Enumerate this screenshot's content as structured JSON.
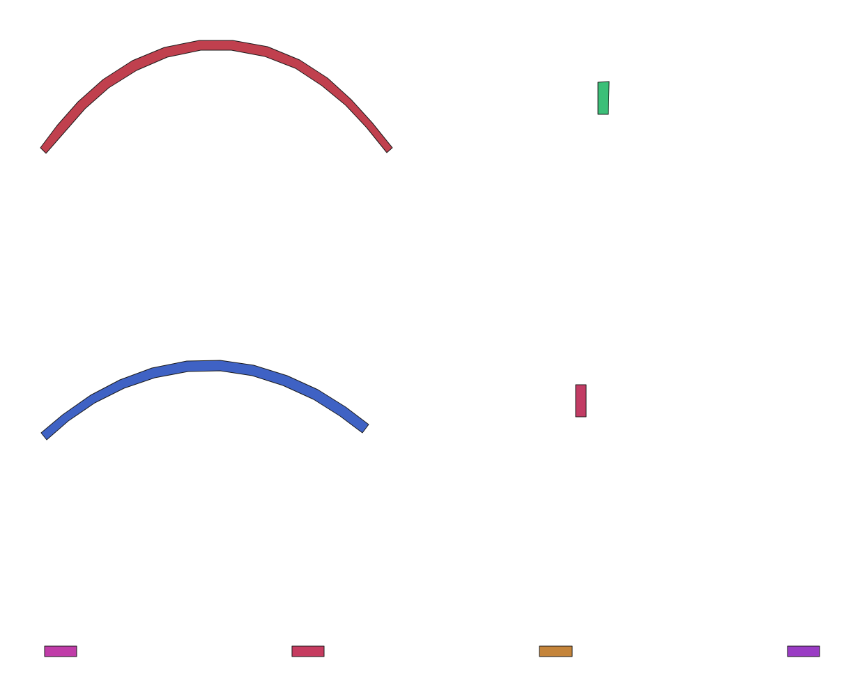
{
  "shapes": {
    "red_arc": {
      "color": "#c0404e",
      "kind": "arc-band"
    },
    "green_bar": {
      "color": "#3cbf78",
      "kind": "bar"
    },
    "blue_arc": {
      "color": "#3f62c4",
      "kind": "arc-band"
    },
    "crimson_bar": {
      "color": "#c23c64",
      "kind": "bar"
    },
    "swatch_magenta": {
      "color": "#c03ca8",
      "kind": "bar"
    },
    "swatch_crimson": {
      "color": "#c63c60",
      "kind": "bar"
    },
    "swatch_orange": {
      "color": "#c4843a",
      "kind": "bar"
    },
    "swatch_purple": {
      "color": "#9a3cc4",
      "kind": "bar"
    }
  }
}
